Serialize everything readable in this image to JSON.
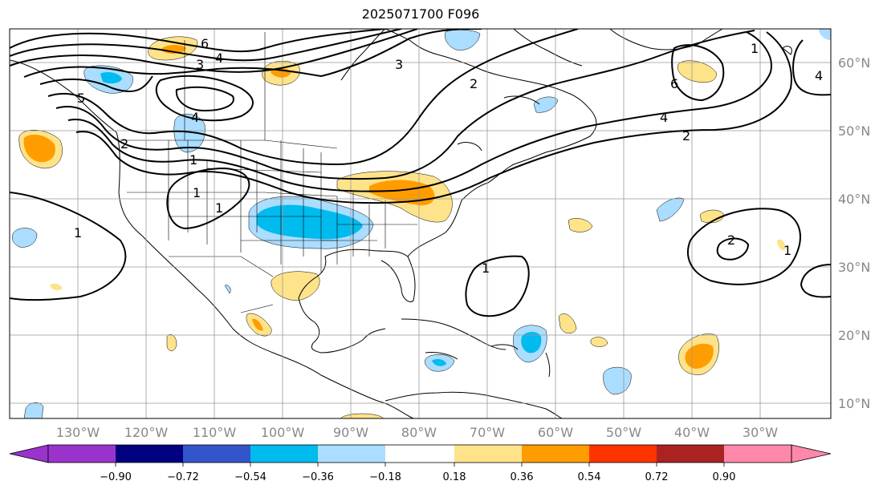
{
  "title": "2025071700 F096",
  "lon_labels": [
    "130°W",
    "120°W",
    "110°W",
    "100°W",
    "90°W",
    "80°W",
    "70°W",
    "60°W",
    "50°W",
    "40°W",
    "30°W"
  ],
  "lat_labels": [
    "60°N",
    "50°N",
    "40°N",
    "30°N",
    "20°N",
    "10°N"
  ],
  "contour_labels": [
    "6",
    "3",
    "4",
    "1",
    "4",
    "5",
    "3",
    "4",
    "2",
    "6",
    "4",
    "2",
    "2",
    "1",
    "1",
    "1",
    "1",
    "2",
    "1",
    "1"
  ],
  "colorbar": {
    "ticks": [
      "−0.90",
      "−0.72",
      "−0.54",
      "−0.36",
      "−0.18",
      "0.18",
      "0.36",
      "0.54",
      "0.72",
      "0.90"
    ],
    "colors": [
      "#9933cc",
      "#000080",
      "#3355cc",
      "#00bbee",
      "#aaddff",
      "#ffffff",
      "#ffe38a",
      "#ff9d00",
      "#ff3300",
      "#aa2222",
      "#ff88aa"
    ]
  },
  "fill_colors": {
    "light_blue": "#aaddff",
    "blue": "#00bbee",
    "yellow": "#ffe38a",
    "orange": "#ff9d00"
  }
}
